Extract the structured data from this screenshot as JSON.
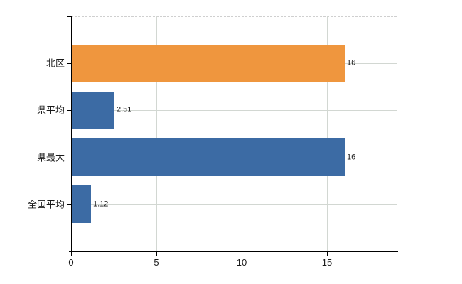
{
  "chart_data": {
    "type": "bar",
    "orientation": "horizontal",
    "categories": [
      "北区",
      "県平均",
      "県最大",
      "全国平均"
    ],
    "values": [
      16,
      2.51,
      16,
      1.12
    ],
    "value_labels": [
      "16",
      "2.51",
      "16",
      "1.12"
    ],
    "bar_colors": [
      "#EF963E",
      "#3C6BA4",
      "#3C6BA4",
      "#3C6BA4"
    ],
    "x_ticks": [
      0,
      5,
      10,
      15
    ],
    "x_tick_labels": [
      "0",
      "5",
      "10",
      "15"
    ],
    "xlim": [
      0,
      19.1
    ],
    "grid": "on",
    "legend": "none",
    "title": ""
  },
  "colors": {
    "bar_orange": "#EF963E",
    "bar_blue": "#3C6BA4",
    "gridline": "#D2D7D2",
    "top_border_dash": "#CFCFCF",
    "axis": "#000000",
    "text": "#1A1A1A",
    "background": "#FFFFFF"
  }
}
